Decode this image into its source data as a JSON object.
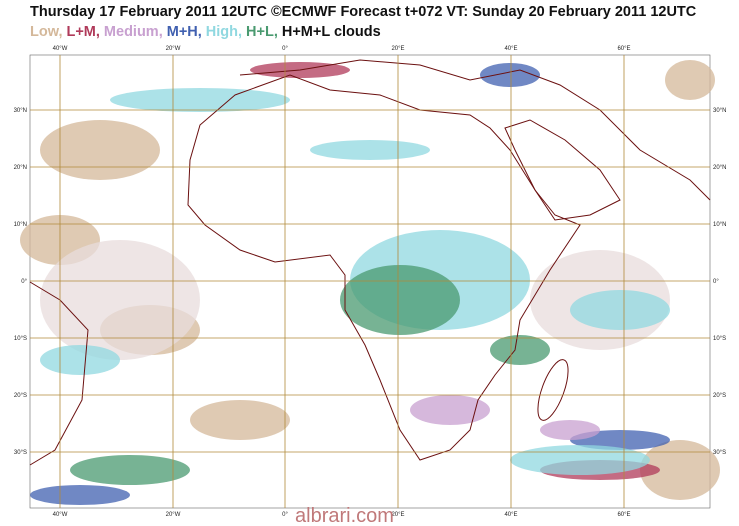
{
  "header": {
    "title": "Thursday 17 February 2011 12UTC ©ECMWF Forecast t+072 VT: Sunday 20 February 2011 12UTC"
  },
  "legend": [
    "Low,",
    "L+M,",
    "Medium,",
    "M+H,",
    "High,",
    "H+L,",
    "H+M+L clouds"
  ],
  "map": {
    "lon_labels": [
      "40°W",
      "20°W",
      "0°",
      "20°E",
      "40°E",
      "60°E"
    ],
    "lat_labels": [
      "30°N",
      "20°N",
      "10°N",
      "0°",
      "10°S",
      "20°S",
      "30°S"
    ]
  },
  "watermark": "albrari.com"
}
